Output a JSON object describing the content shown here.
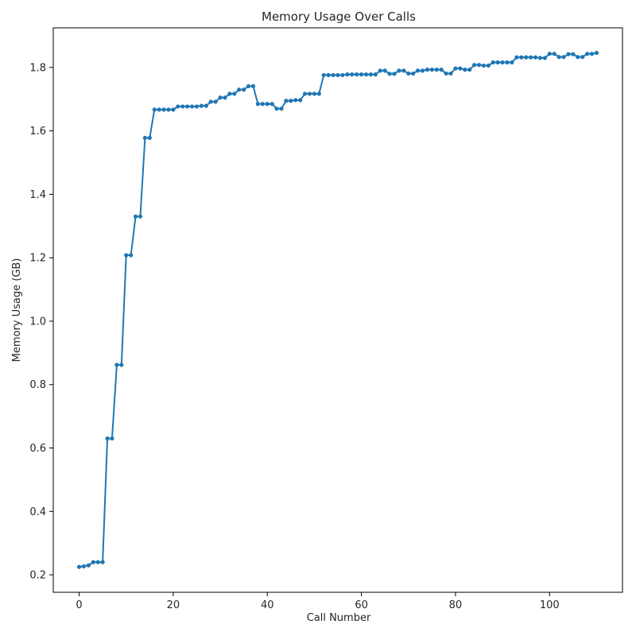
{
  "chart_data": {
    "type": "line",
    "title": "Memory Usage Over Calls",
    "xlabel": "Call Number",
    "ylabel": "Memory Usage (GB)",
    "xlim": [
      -5.5,
      115.5
    ],
    "ylim": [
      0.145,
      1.925
    ],
    "xticks": [
      0,
      20,
      40,
      60,
      80,
      100
    ],
    "yticks": [
      0.2,
      0.4,
      0.6,
      0.8,
      1.0,
      1.2,
      1.4,
      1.6,
      1.8
    ],
    "ytick_labels": [
      "0.2",
      "0.4",
      "0.6",
      "0.8",
      "1.0",
      "1.2",
      "1.4",
      "1.6",
      "1.8"
    ],
    "grid": false,
    "marker": "circle",
    "series": [
      {
        "color": "#1f77b4",
        "x": [
          0,
          1,
          2,
          3,
          4,
          5,
          6,
          7,
          8,
          9,
          10,
          11,
          12,
          13,
          14,
          15,
          16,
          17,
          18,
          19,
          20,
          21,
          22,
          23,
          24,
          25,
          26,
          27,
          28,
          29,
          30,
          31,
          32,
          33,
          34,
          35,
          36,
          37,
          38,
          39,
          40,
          41,
          42,
          43,
          44,
          45,
          46,
          47,
          48,
          49,
          50,
          51,
          52,
          53,
          54,
          55,
          56,
          57,
          58,
          59,
          60,
          61,
          62,
          63,
          64,
          65,
          66,
          67,
          68,
          69,
          70,
          71,
          72,
          73,
          74,
          75,
          76,
          77,
          78,
          79,
          80,
          81,
          82,
          83,
          84,
          85,
          86,
          87,
          88,
          89,
          90,
          91,
          92,
          93,
          94,
          95,
          96,
          97,
          98,
          99,
          100,
          101,
          102,
          103,
          104,
          105,
          106,
          107,
          108,
          109,
          110
        ],
        "y": [
          0.225,
          0.227,
          0.23,
          0.24,
          0.24,
          0.24,
          0.63,
          0.63,
          0.862,
          0.862,
          1.208,
          1.208,
          1.33,
          1.33,
          1.578,
          1.578,
          1.667,
          1.667,
          1.667,
          1.667,
          1.667,
          1.677,
          1.677,
          1.677,
          1.677,
          1.677,
          1.679,
          1.679,
          1.692,
          1.692,
          1.705,
          1.705,
          1.717,
          1.717,
          1.73,
          1.73,
          1.741,
          1.741,
          1.685,
          1.685,
          1.685,
          1.685,
          1.67,
          1.67,
          1.695,
          1.695,
          1.697,
          1.697,
          1.717,
          1.717,
          1.717,
          1.717,
          1.776,
          1.776,
          1.776,
          1.776,
          1.776,
          1.778,
          1.778,
          1.778,
          1.778,
          1.778,
          1.778,
          1.778,
          1.79,
          1.79,
          1.78,
          1.78,
          1.79,
          1.79,
          1.781,
          1.781,
          1.79,
          1.79,
          1.793,
          1.793,
          1.793,
          1.793,
          1.781,
          1.781,
          1.797,
          1.797,
          1.793,
          1.793,
          1.808,
          1.808,
          1.806,
          1.806,
          1.816,
          1.816,
          1.816,
          1.816,
          1.816,
          1.832,
          1.832,
          1.832,
          1.832,
          1.832,
          1.83,
          1.83,
          1.843,
          1.843,
          1.833,
          1.833,
          1.842,
          1.842,
          1.833,
          1.833,
          1.843,
          1.843,
          1.846
        ]
      }
    ]
  }
}
